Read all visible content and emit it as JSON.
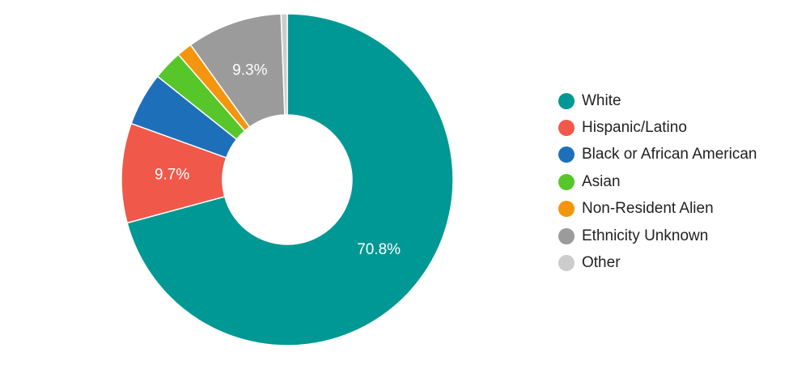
{
  "chart_data": {
    "type": "pie",
    "donut": true,
    "title": "",
    "legend_position": "right",
    "categories": [
      "White",
      "Hispanic/Latino",
      "Black or African American",
      "Asian",
      "Non-Resident Alien",
      "Ethnicity Unknown",
      "Other"
    ],
    "values": [
      70.8,
      9.7,
      5.2,
      2.9,
      1.5,
      9.3,
      0.6
    ],
    "data_labels": [
      "70.8%",
      "9.7%",
      "",
      "",
      "",
      "9.3%",
      ""
    ],
    "colors": [
      "#009894",
      "#f0584a",
      "#1e6fb9",
      "#57c62a",
      "#f4950f",
      "#9b9b9b",
      "#cccccc"
    ]
  }
}
